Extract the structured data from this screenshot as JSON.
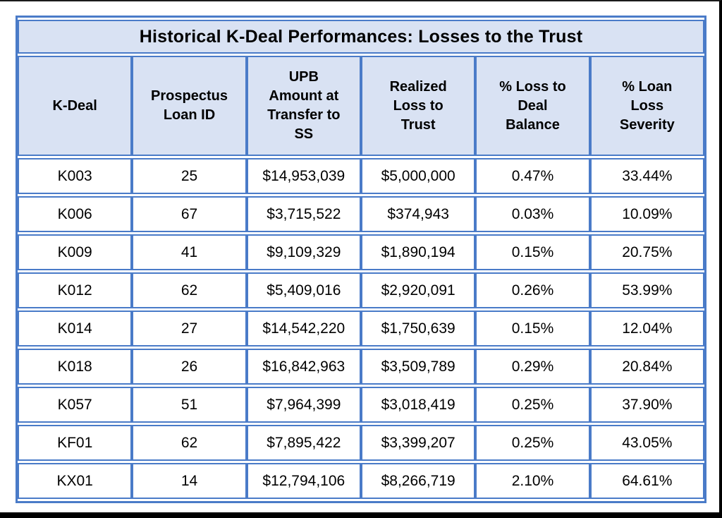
{
  "colors": {
    "table_border_blue": "#4a7bc8",
    "header_background": "#d9e2f3",
    "row_background": "#ffffff",
    "frame_black": "#000000",
    "text": "#000000"
  },
  "title": "Historical K-Deal Performances: Losses to the Trust",
  "table": {
    "headers": {
      "k_deal": "K-Deal",
      "loan_id": "Prospectus\nLoan ID",
      "upb": "UPB\nAmount at\nTransfer to\nSS",
      "realized_loss": "Realized\nLoss to\nTrust",
      "pct_loss_deal": "% Loss to\nDeal\nBalance",
      "pct_loan_severity": "% Loan\nLoss\nSeverity"
    },
    "rows": [
      {
        "k_deal": "K003",
        "loan_id": "25",
        "upb": "$14,953,039",
        "realized_loss": "$5,000,000",
        "pct_loss_deal": "0.47%",
        "pct_loan_severity": "33.44%"
      },
      {
        "k_deal": "K006",
        "loan_id": "67",
        "upb": "$3,715,522",
        "realized_loss": "$374,943",
        "pct_loss_deal": "0.03%",
        "pct_loan_severity": "10.09%"
      },
      {
        "k_deal": "K009",
        "loan_id": "41",
        "upb": "$9,109,329",
        "realized_loss": "$1,890,194",
        "pct_loss_deal": "0.15%",
        "pct_loan_severity": "20.75%"
      },
      {
        "k_deal": "K012",
        "loan_id": "62",
        "upb": "$5,409,016",
        "realized_loss": "$2,920,091",
        "pct_loss_deal": "0.26%",
        "pct_loan_severity": "53.99%"
      },
      {
        "k_deal": "K014",
        "loan_id": "27",
        "upb": "$14,542,220",
        "realized_loss": "$1,750,639",
        "pct_loss_deal": "0.15%",
        "pct_loan_severity": "12.04%"
      },
      {
        "k_deal": "K018",
        "loan_id": "26",
        "upb": "$16,842,963",
        "realized_loss": "$3,509,789",
        "pct_loss_deal": "0.29%",
        "pct_loan_severity": "20.84%"
      },
      {
        "k_deal": "K057",
        "loan_id": "51",
        "upb": "$7,964,399",
        "realized_loss": "$3,018,419",
        "pct_loss_deal": "0.25%",
        "pct_loan_severity": "37.90%"
      },
      {
        "k_deal": "KF01",
        "loan_id": "62",
        "upb": "$7,895,422",
        "realized_loss": "$3,399,207",
        "pct_loss_deal": "0.25%",
        "pct_loan_severity": "43.05%"
      },
      {
        "k_deal": "KX01",
        "loan_id": "14",
        "upb": "$12,794,106",
        "realized_loss": "$8,266,719",
        "pct_loss_deal": "2.10%",
        "pct_loan_severity": "64.61%"
      }
    ]
  }
}
